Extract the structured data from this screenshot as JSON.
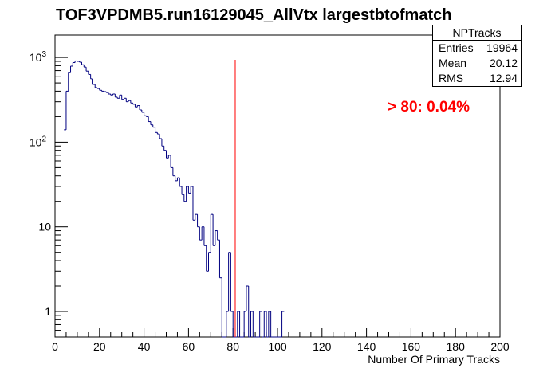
{
  "chart_data": {
    "type": "histogram",
    "title": "TOF3VPDMB5.run16129045_AllVtx largestbtofmatch",
    "xlabel": "Number Of Primary Tracks",
    "ylabel": "",
    "xlim": [
      0,
      200
    ],
    "ylim": [
      0.5,
      1500
    ],
    "yscale": "log",
    "bin_width": 1,
    "x_ticks": [
      0,
      20,
      40,
      60,
      80,
      100,
      120,
      140,
      160,
      180,
      200
    ],
    "y_ticks": [
      {
        "value": 1000,
        "label": "10",
        "sup": "3"
      },
      {
        "value": 100,
        "label": "10",
        "sup": "2"
      },
      {
        "value": 10,
        "label": "10",
        "sup": ""
      },
      {
        "value": 1,
        "label": "1",
        "sup": ""
      }
    ],
    "line_color": "#000080",
    "cut_line": {
      "x": 81,
      "color": "#ff0000"
    },
    "bins": [
      {
        "x": 4,
        "y": 140
      },
      {
        "x": 5,
        "y": 400
      },
      {
        "x": 6,
        "y": 660
      },
      {
        "x": 7,
        "y": 790
      },
      {
        "x": 8,
        "y": 870
      },
      {
        "x": 9,
        "y": 910
      },
      {
        "x": 10,
        "y": 900
      },
      {
        "x": 11,
        "y": 880
      },
      {
        "x": 12,
        "y": 820
      },
      {
        "x": 13,
        "y": 770
      },
      {
        "x": 14,
        "y": 690
      },
      {
        "x": 15,
        "y": 630
      },
      {
        "x": 16,
        "y": 560
      },
      {
        "x": 17,
        "y": 480
      },
      {
        "x": 18,
        "y": 440
      },
      {
        "x": 19,
        "y": 430
      },
      {
        "x": 20,
        "y": 410
      },
      {
        "x": 21,
        "y": 400
      },
      {
        "x": 22,
        "y": 395
      },
      {
        "x": 23,
        "y": 385
      },
      {
        "x": 24,
        "y": 370
      },
      {
        "x": 25,
        "y": 360
      },
      {
        "x": 26,
        "y": 370
      },
      {
        "x": 27,
        "y": 340
      },
      {
        "x": 28,
        "y": 330
      },
      {
        "x": 29,
        "y": 360
      },
      {
        "x": 30,
        "y": 320
      },
      {
        "x": 31,
        "y": 330
      },
      {
        "x": 32,
        "y": 300
      },
      {
        "x": 33,
        "y": 310
      },
      {
        "x": 34,
        "y": 290
      },
      {
        "x": 35,
        "y": 280
      },
      {
        "x": 36,
        "y": 260
      },
      {
        "x": 37,
        "y": 270
      },
      {
        "x": 38,
        "y": 240
      },
      {
        "x": 39,
        "y": 225
      },
      {
        "x": 40,
        "y": 205
      },
      {
        "x": 41,
        "y": 200
      },
      {
        "x": 42,
        "y": 175
      },
      {
        "x": 43,
        "y": 160
      },
      {
        "x": 44,
        "y": 150
      },
      {
        "x": 45,
        "y": 130
      },
      {
        "x": 46,
        "y": 125
      },
      {
        "x": 47,
        "y": 110
      },
      {
        "x": 48,
        "y": 90
      },
      {
        "x": 49,
        "y": 80
      },
      {
        "x": 50,
        "y": 65
      },
      {
        "x": 51,
        "y": 70
      },
      {
        "x": 52,
        "y": 50
      },
      {
        "x": 53,
        "y": 40
      },
      {
        "x": 54,
        "y": 35
      },
      {
        "x": 55,
        "y": 38
      },
      {
        "x": 56,
        "y": 30
      },
      {
        "x": 57,
        "y": 24
      },
      {
        "x": 58,
        "y": 20
      },
      {
        "x": 59,
        "y": 30
      },
      {
        "x": 60,
        "y": 25
      },
      {
        "x": 61,
        "y": 30
      },
      {
        "x": 62,
        "y": 12
      },
      {
        "x": 63,
        "y": 14
      },
      {
        "x": 64,
        "y": 10
      },
      {
        "x": 65,
        "y": 7
      },
      {
        "x": 66,
        "y": 10
      },
      {
        "x": 67,
        "y": 6
      },
      {
        "x": 68,
        "y": 3
      },
      {
        "x": 69,
        "y": 5
      },
      {
        "x": 70,
        "y": 14
      },
      {
        "x": 71,
        "y": 6
      },
      {
        "x": 72,
        "y": 9
      },
      {
        "x": 73,
        "y": 7
      },
      {
        "x": 74,
        "y": 2.5
      },
      {
        "x": 75,
        "y": 0
      },
      {
        "x": 76,
        "y": 0
      },
      {
        "x": 77,
        "y": 1
      },
      {
        "x": 78,
        "y": 5
      },
      {
        "x": 79,
        "y": 1
      },
      {
        "x": 80,
        "y": 0
      },
      {
        "x": 81,
        "y": 0
      },
      {
        "x": 82,
        "y": 1
      },
      {
        "x": 83,
        "y": 0
      },
      {
        "x": 84,
        "y": 0
      },
      {
        "x": 85,
        "y": 1
      },
      {
        "x": 86,
        "y": 2
      },
      {
        "x": 87,
        "y": 0
      },
      {
        "x": 88,
        "y": 1
      },
      {
        "x": 89,
        "y": 0
      },
      {
        "x": 90,
        "y": 0
      },
      {
        "x": 91,
        "y": 0
      },
      {
        "x": 92,
        "y": 1
      },
      {
        "x": 93,
        "y": 0
      },
      {
        "x": 94,
        "y": 1
      },
      {
        "x": 95,
        "y": 0
      },
      {
        "x": 96,
        "y": 1
      },
      {
        "x": 97,
        "y": 0
      },
      {
        "x": 98,
        "y": 0
      },
      {
        "x": 99,
        "y": 0
      },
      {
        "x": 100,
        "y": 0
      },
      {
        "x": 101,
        "y": 0
      },
      {
        "x": 102,
        "y": 1
      }
    ]
  },
  "stats": {
    "name": "NPTracks",
    "entries_label": "Entries",
    "entries_value": "19964",
    "mean_label": "Mean",
    "mean_value": "20.12",
    "rms_label": "RMS",
    "rms_value": "12.94"
  },
  "annotation": "> 80: 0.04%"
}
